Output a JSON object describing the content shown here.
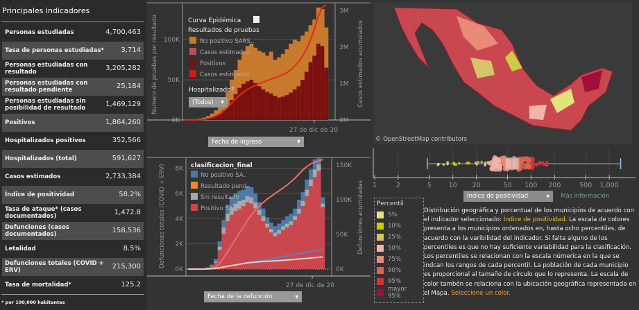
{
  "indicators": {
    "title": "Principales indicadores",
    "footnote": "* por 100,000 habitantes",
    "rows": [
      {
        "label": "Personas estudiadas",
        "value": "4,700,463"
      },
      {
        "label": "Tasa de personas estudiadas*",
        "value": "3,714"
      },
      {
        "label": "Personas estudiadas con resultado",
        "value": "3,205,282"
      },
      {
        "label": "Personas estudiadas con resultado pendiente",
        "value": "25,184"
      },
      {
        "label": "Personas estudiadas sin posibilidad de resultado",
        "value": "1,469,129"
      },
      {
        "label": "Positivos",
        "value": "1,864,260"
      },
      {
        "label": "Hospitalizados positivos",
        "value": "352,566"
      },
      {
        "label": "Hospitalizados (total)",
        "value": "591,627"
      },
      {
        "label": "Casos estimados",
        "value": "2,733,384"
      },
      {
        "label": "Índice de positividad",
        "value": "58.2%"
      },
      {
        "label": "Tasa de ataque* (casos documentados)",
        "value": "1,472.8"
      },
      {
        "label": "Defunciones (casos documentados)",
        "value": "158,536"
      },
      {
        "label": "Letalidad",
        "value": "8.5%"
      },
      {
        "label": "Defunciones totales (COVID + ERV)",
        "value": "215,300"
      },
      {
        "label": "Tasa de mortalidad*",
        "value": "125.2"
      }
    ]
  },
  "chart_data": [
    {
      "type": "bar",
      "title": "Curva Epidémica",
      "legend_title": "Resultados de pruebas",
      "legend_position": "top-left",
      "ylabel": "Numero de pruebas por resultado",
      "y2label": "Casos estimados acumulados",
      "xlabel_dropdown": "Fecha de ingreso",
      "x_tick": "27 de dic de 20",
      "yticks": [
        "0K",
        "50K",
        "100K"
      ],
      "y2ticks": [
        "0M",
        "1M",
        "2M",
        "3M"
      ],
      "ylim": [
        0,
        145000
      ],
      "y2lim": [
        0,
        3200000
      ],
      "filter_label": "Hospitalizado?",
      "filter_value": "(Todos)",
      "legend": [
        {
          "name": "No positivo SARS..",
          "color": "#c87a2c"
        },
        {
          "name": "Casos estimados ..",
          "color": "#b5525a"
        },
        {
          "name": "Positivos",
          "color": "#7a1010"
        },
        {
          "name": "Casos estimados ..",
          "color": "#d81818"
        }
      ],
      "series": [
        {
          "name": "No positivo SARS..",
          "values": [
            0,
            0,
            0,
            1,
            2,
            3,
            5,
            8,
            12,
            18,
            25,
            35,
            50,
            62,
            75,
            85,
            92,
            95,
            90,
            86,
            84,
            80,
            85,
            75,
            78,
            82,
            88,
            95,
            100,
            98,
            105,
            110,
            118,
            125,
            140,
            138,
            115
          ]
        },
        {
          "name": "Positivos",
          "values": [
            0,
            0,
            0,
            0,
            1,
            1,
            2,
            3,
            5,
            8,
            12,
            18,
            25,
            32,
            40,
            45,
            48,
            50,
            46,
            42,
            38,
            35,
            33,
            30,
            28,
            29,
            31,
            34,
            38,
            42,
            50,
            60,
            72,
            80,
            95,
            92,
            65
          ]
        },
        {
          "name": "Casos estimados ..",
          "values": [
            0,
            0,
            0,
            0,
            0.01,
            0.02,
            0.04,
            0.07,
            0.11,
            0.17,
            0.25,
            0.35,
            0.47,
            0.58,
            0.68,
            0.77,
            0.84,
            0.9,
            0.95,
            1.0,
            1.04,
            1.08,
            1.12,
            1.16,
            1.2,
            1.25,
            1.3,
            1.38,
            1.48,
            1.6,
            1.76,
            1.95,
            2.2,
            2.5,
            2.85,
            3.1,
            3.15
          ]
        }
      ]
    },
    {
      "type": "bar",
      "legend_title": "clasificacion_final",
      "legend_position": "top-left",
      "ylabel": "Defunciones totales (COVID + ERV)",
      "y2label": "Defunciones acumuladas",
      "xlabel_dropdown": "Fecha de la defunción",
      "x_tick": "27 de dic de 20",
      "yticks": [
        "0K",
        "2K",
        "4K",
        "6K",
        "8K"
      ],
      "y2ticks": [
        "0K",
        "50K",
        "100K",
        "150K"
      ],
      "ylim": [
        0,
        8800
      ],
      "y2lim": [
        0,
        160000
      ],
      "legend": [
        {
          "name": "No positivo SA..",
          "color": "#4e79a7"
        },
        {
          "name": "Resultado pend..",
          "color": "#e8892b"
        },
        {
          "name": "Sin resultado",
          "color": "#a8a8a8"
        },
        {
          "name": "Positivo SARS..",
          "color": "#c9484f"
        }
      ],
      "series": [
        {
          "name": "Positivo SARS..",
          "values": [
            0,
            0,
            0,
            0,
            0,
            0.1,
            0.2,
            0.5,
            1.5,
            2.8,
            3.8,
            4.3,
            4.6,
            4.8,
            5.0,
            5.3,
            5.2,
            4.8,
            4.3,
            3.8,
            3.3,
            2.9,
            2.6,
            2.8,
            3.1,
            3.3,
            3.5,
            3.9,
            4.4,
            5.0,
            5.8,
            6.6,
            7.3,
            7.8,
            4.9
          ]
        },
        {
          "name": "Sin resultado",
          "values": [
            0,
            0,
            0,
            0,
            0,
            0,
            0.05,
            0.1,
            0.3,
            0.5,
            0.6,
            0.6,
            0.6,
            0.6,
            0.5,
            0.5,
            0.5,
            0.5,
            0.4,
            0.4,
            0.3,
            0.3,
            0.3,
            0.3,
            0.3,
            0.3,
            0.3,
            0.3,
            0.4,
            0.4,
            0.5,
            0.5,
            0.6,
            0.5,
            0.3
          ]
        },
        {
          "name": "No positivo SA..",
          "values": [
            0.05,
            0.05,
            0.05,
            0.05,
            0.05,
            0.05,
            0.1,
            0.2,
            0.4,
            0.6,
            0.7,
            0.8,
            0.8,
            0.8,
            0.8,
            0.8,
            0.8,
            0.7,
            0.6,
            0.6,
            0.5,
            0.5,
            0.5,
            0.5,
            0.5,
            0.6,
            0.6,
            0.6,
            0.7,
            0.7,
            0.8,
            0.8,
            0.8,
            0.6,
            0.5
          ]
        }
      ],
      "cumulative": [
        {
          "name": "Positivo SARS..",
          "values": [
            0,
            0,
            0,
            0,
            0,
            0.5,
            1,
            3,
            8,
            16,
            25,
            34,
            43,
            52,
            61,
            70,
            78,
            85,
            91,
            96,
            101,
            105,
            109,
            113,
            117,
            121,
            126,
            131,
            137,
            143,
            148,
            152,
            154,
            156,
            158
          ]
        },
        {
          "name": "No positivo SA..",
          "values": [
            0,
            0,
            0,
            0,
            0,
            0.3,
            0.6,
            1.2,
            2,
            3,
            4,
            5,
            6,
            7,
            8,
            9,
            10,
            11,
            12,
            13,
            14,
            15,
            16,
            17,
            18,
            19,
            20,
            21,
            22,
            23,
            24,
            25,
            26,
            27,
            28
          ]
        },
        {
          "name": "Sin resultado",
          "values": [
            0,
            0,
            0,
            0,
            0,
            0.2,
            0.5,
            1,
            2,
            3,
            4,
            5,
            6,
            7,
            8,
            9,
            9.5,
            10,
            10.5,
            11,
            11.3,
            11.6,
            12,
            12.3,
            12.6,
            13,
            13.5,
            14,
            14.5,
            15,
            15.5,
            16,
            16.5,
            17,
            17.5
          ]
        }
      ]
    },
    {
      "type": "scatter",
      "subtype": "boxplot",
      "scale": "log",
      "xticks": [
        "1",
        "2",
        "5",
        "10",
        "20",
        "50",
        "100",
        "200",
        "500",
        "1,000"
      ],
      "box": {
        "whisker_low": 4.7,
        "q1": 47,
        "median": 57,
        "q3": 70,
        "whisker_high": 1400
      }
    }
  ],
  "map": {
    "attribution": "© OpenStreetMap contributors"
  },
  "selector": {
    "value": "Índice de positividad",
    "more_info": "Más información"
  },
  "percentil": {
    "title": "Percentil",
    "items": [
      {
        "label": "5%",
        "color": "#e6e27a"
      },
      {
        "label": "10%",
        "color": "#cccc00"
      },
      {
        "label": "25%",
        "color": "#d9c36a"
      },
      {
        "label": "50%",
        "color": "#f1b4a8"
      },
      {
        "label": "75%",
        "color": "#e98a78"
      },
      {
        "label": "90%",
        "color": "#e0614f"
      },
      {
        "label": "95%",
        "color": "#d2323a"
      },
      {
        "label": "mayor 95%",
        "color": "#a0103a"
      }
    ]
  },
  "description": {
    "part1": "Distribución geográfica y porcentual de los municipios de acuerdo con el indicador seleccionado: ",
    "highlight": "Índice de positividad",
    "part2": ". La escala de colores presenta a los municipios ordenados en, hasta ocho percentiles, de acuerdo con la varibilidad del indicador. Si falta alguno de los percentiles es que no hay suficiente variabilidad para la clasificación. Los percentiles se relacionan con la escala númerica en la que se indcan los rangos de cada percentil. La población de cada municipio es proporcional al tamaño de círculo que lo representa. La escala de color tambén se relaciona con la ubicación geográfica representada en el Mapa. ",
    "link": "Seleccione un color."
  },
  "colors": {
    "highlight": "#e8c33a",
    "link": "#f0a040"
  }
}
